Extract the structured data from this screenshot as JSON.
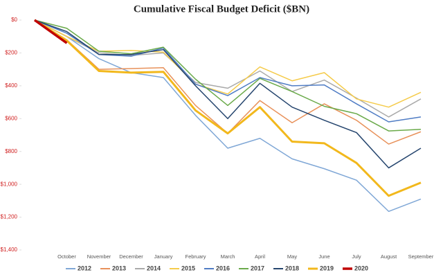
{
  "chart_data": {
    "type": "line",
    "title": "Cumulative Fiscal Budget Deficit ($BN)",
    "categories": [
      null,
      "October",
      "November",
      "December",
      "January",
      "February",
      "March",
      "April",
      "May",
      "June",
      "July",
      "August",
      "September"
    ],
    "ylim": [
      0,
      1400
    ],
    "inverted": true,
    "grid": false,
    "yticks": [
      {
        "value": 0,
        "label": "$0"
      },
      {
        "value": 200,
        "label": "$200"
      },
      {
        "value": 400,
        "label": "$400"
      },
      {
        "value": 600,
        "label": "$600"
      },
      {
        "value": 800,
        "label": "$800"
      },
      {
        "value": 1000,
        "label": "$1,000"
      },
      {
        "value": 1200,
        "label": "$1,200"
      },
      {
        "value": 1400,
        "label": "$1,400"
      }
    ],
    "series": [
      {
        "name": "2012",
        "color": "#7fa7d6",
        "width": 1.5,
        "values": [
          0,
          100,
          235,
          320,
          350,
          580,
          780,
          720,
          845,
          905,
          975,
          1165,
          1090
        ]
      },
      {
        "name": "2013",
        "color": "#e8915a",
        "width": 1.5,
        "values": [
          0,
          120,
          300,
          295,
          290,
          520,
          690,
          490,
          625,
          510,
          610,
          755,
          680
        ]
      },
      {
        "name": "2014",
        "color": "#aaaaaa",
        "width": 1.5,
        "values": [
          0,
          100,
          200,
          215,
          200,
          380,
          415,
          310,
          435,
          365,
          475,
          590,
          480
        ]
      },
      {
        "name": "2015",
        "color": "#f5cb4a",
        "width": 1.5,
        "values": [
          0,
          100,
          190,
          185,
          195,
          390,
          450,
          285,
          370,
          320,
          480,
          530,
          440
        ]
      },
      {
        "name": "2016",
        "color": "#4f7cc4",
        "width": 1.5,
        "values": [
          0,
          80,
          210,
          220,
          170,
          390,
          460,
          350,
          400,
          395,
          510,
          620,
          590
        ]
      },
      {
        "name": "2017",
        "color": "#6aaa4a",
        "width": 1.5,
        "values": [
          0,
          50,
          190,
          205,
          165,
          360,
          520,
          355,
          435,
          525,
          570,
          675,
          665
        ]
      },
      {
        "name": "2018",
        "color": "#25456e",
        "width": 1.5,
        "values": [
          0,
          70,
          210,
          210,
          180,
          400,
          600,
          385,
          530,
          610,
          685,
          900,
          780
        ]
      },
      {
        "name": "2019",
        "color": "#f2b81c",
        "width": 3,
        "values": [
          0,
          125,
          310,
          320,
          315,
          550,
          690,
          530,
          740,
          750,
          870,
          1070,
          990
        ]
      },
      {
        "name": "2020",
        "color": "#c00000",
        "width": 3.5,
        "values": [
          0,
          140,
          null,
          null,
          null,
          null,
          null,
          null,
          null,
          null,
          null,
          null,
          null
        ]
      }
    ]
  }
}
